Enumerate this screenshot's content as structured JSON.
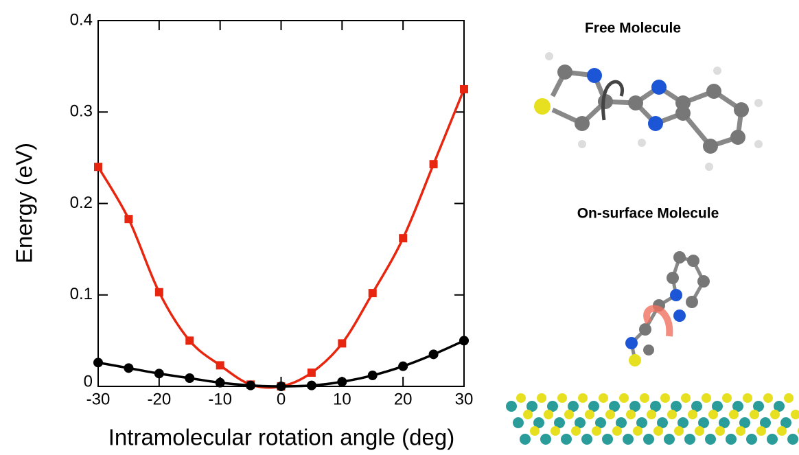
{
  "chart_data": {
    "type": "line",
    "xlabel": "Intramolecular rotation angle (deg)",
    "ylabel": "Energy (eV)",
    "x": [
      -30,
      -25,
      -20,
      -15,
      -10,
      -5,
      0,
      5,
      10,
      15,
      20,
      25,
      30
    ],
    "series": [
      {
        "name": "On-surface Molecule",
        "color": "#e8260f",
        "marker": "square",
        "values": [
          0.24,
          0.183,
          0.103,
          0.05,
          0.023,
          0.002,
          0,
          0.015,
          0.047,
          0.102,
          0.162,
          0.243,
          0.325
        ]
      },
      {
        "name": "Free Molecule",
        "color": "#000000",
        "marker": "circle",
        "values": [
          0.026,
          0.02,
          0.014,
          0.009,
          0.004,
          0.001,
          0,
          0.001,
          0.005,
          0.012,
          0.022,
          0.035,
          0.05
        ]
      }
    ],
    "xlim": [
      -30,
      30
    ],
    "xticks": [
      -30,
      -20,
      -10,
      0,
      10,
      20,
      30
    ],
    "ylim": [
      0,
      0.4
    ],
    "yticks": [
      0,
      0.1,
      0.2,
      0.3,
      0.4
    ]
  }
}
